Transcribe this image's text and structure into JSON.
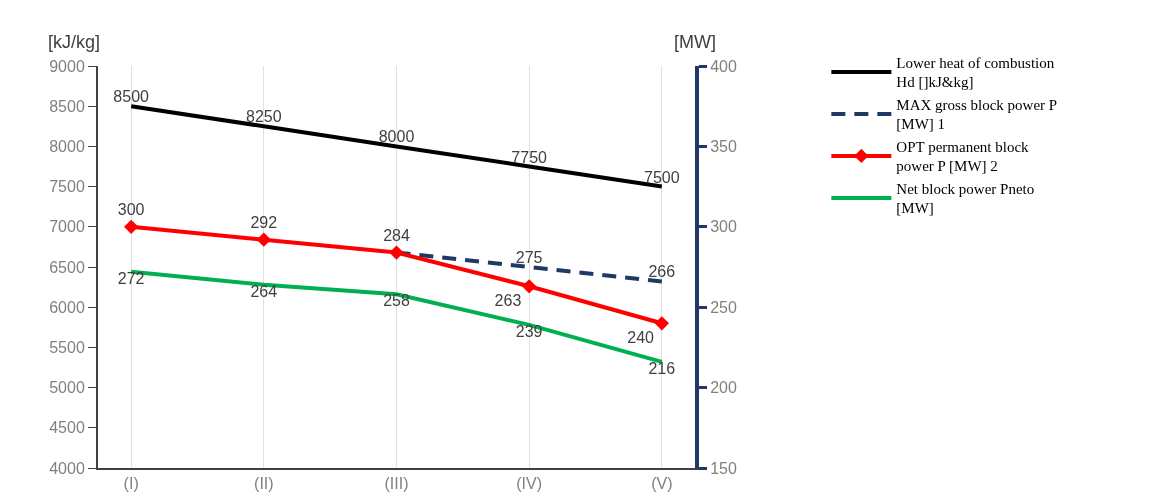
{
  "chart_data": {
    "type": "line",
    "ylabel": "[kJ/kg]",
    "y2label": "[MW]",
    "categories": [
      "(I)",
      "(II)",
      "(III)",
      "(IV)",
      "(V)"
    ],
    "series": [
      {
        "name": "Lower heat of combustion Hd []kJ&kg]",
        "color": "#000000",
        "values": [
          8500,
          8250,
          8000,
          7750,
          7500
        ]
      },
      {
        "name": "MAX gross block power P [MW] 1",
        "color": "#1f3864",
        "axis": "y2",
        "line_style": "dashed",
        "values": [
          null,
          null,
          284,
          275,
          266
        ],
        "value_labels": [
          null,
          null,
          null,
          "275",
          "266"
        ]
      },
      {
        "name": "OPT permanent block power P [MW] 2",
        "color": "#ff0000",
        "axis": "y2",
        "marker": "diamond",
        "values": [
          300,
          292,
          284,
          263,
          240
        ]
      },
      {
        "name": "Net block power Pneto [MW]",
        "color": "#00b050",
        "axis": "y2",
        "values": [
          272,
          264,
          258,
          239,
          216
        ]
      }
    ],
    "ylim": [
      4000,
      9000
    ],
    "yticks": [
      4000,
      4500,
      5000,
      5500,
      6000,
      6500,
      7000,
      7500,
      8000,
      8500,
      9000
    ],
    "y2lim": [
      150,
      400
    ],
    "y2ticks": [
      150,
      200,
      250,
      300,
      350,
      400
    ],
    "grid": "x",
    "legend": "right",
    "marker": "none",
    "line_style": "solid",
    "data_labels": true
  }
}
